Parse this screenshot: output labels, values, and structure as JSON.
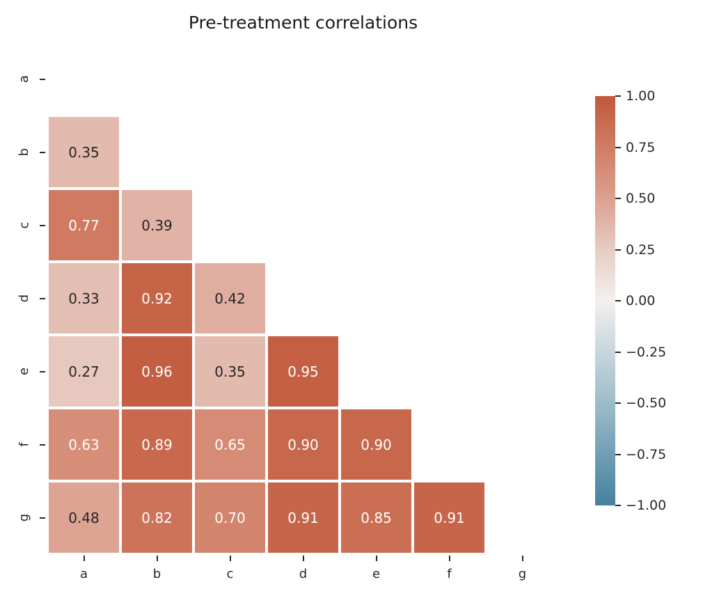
{
  "chart_data": {
    "type": "heatmap",
    "title": "Pre-treatment correlations",
    "x_categories": [
      "a",
      "b",
      "c",
      "d",
      "e",
      "f",
      "g"
    ],
    "y_categories": [
      "a",
      "b",
      "c",
      "d",
      "e",
      "f",
      "g"
    ],
    "mask": "diagonal and upper triangle hidden",
    "cells": [
      {
        "y": "b",
        "x": "a",
        "value": 0.35
      },
      {
        "y": "c",
        "x": "a",
        "value": 0.77
      },
      {
        "y": "c",
        "x": "b",
        "value": 0.39
      },
      {
        "y": "d",
        "x": "a",
        "value": 0.33
      },
      {
        "y": "d",
        "x": "b",
        "value": 0.92
      },
      {
        "y": "d",
        "x": "c",
        "value": 0.42
      },
      {
        "y": "e",
        "x": "a",
        "value": 0.27
      },
      {
        "y": "e",
        "x": "b",
        "value": 0.96
      },
      {
        "y": "e",
        "x": "c",
        "value": 0.35
      },
      {
        "y": "e",
        "x": "d",
        "value": 0.95
      },
      {
        "y": "f",
        "x": "a",
        "value": 0.63
      },
      {
        "y": "f",
        "x": "b",
        "value": 0.89
      },
      {
        "y": "f",
        "x": "c",
        "value": 0.65
      },
      {
        "y": "f",
        "x": "d",
        "value": 0.9
      },
      {
        "y": "f",
        "x": "e",
        "value": 0.9
      },
      {
        "y": "g",
        "x": "a",
        "value": 0.48
      },
      {
        "y": "g",
        "x": "b",
        "value": 0.82
      },
      {
        "y": "g",
        "x": "c",
        "value": 0.7
      },
      {
        "y": "g",
        "x": "d",
        "value": 0.91
      },
      {
        "y": "g",
        "x": "e",
        "value": 0.85
      },
      {
        "y": "g",
        "x": "f",
        "value": 0.91
      }
    ],
    "value_decimals": 2,
    "colorbar": {
      "vmin": -1,
      "vmax": 1,
      "tick_labels": [
        "1.00",
        "0.75",
        "0.50",
        "0.25",
        "0.00",
        "−0.25",
        "−0.50",
        "−0.75",
        "−1.00"
      ],
      "tick_values": [
        1.0,
        0.75,
        0.5,
        0.25,
        0.0,
        -0.25,
        -0.5,
        -0.75,
        -1.0
      ]
    },
    "colors": {
      "stops": [
        {
          "v": -1.0,
          "c": "#46809f"
        },
        {
          "v": -0.5,
          "c": "#9dbcca"
        },
        {
          "v": 0.0,
          "c": "#f2f0ef"
        },
        {
          "v": 0.25,
          "c": "#e7ccc3"
        },
        {
          "v": 0.5,
          "c": "#dca08f"
        },
        {
          "v": 0.75,
          "c": "#d07d64"
        },
        {
          "v": 1.0,
          "c": "#c1583b"
        }
      ],
      "annotation_dark": "#262626",
      "annotation_light": "#ffffff",
      "annotation_light_threshold": 0.5,
      "tick_color": "#262626",
      "title_color": "#1a1a1a",
      "gap_color": "#ffffff"
    }
  }
}
